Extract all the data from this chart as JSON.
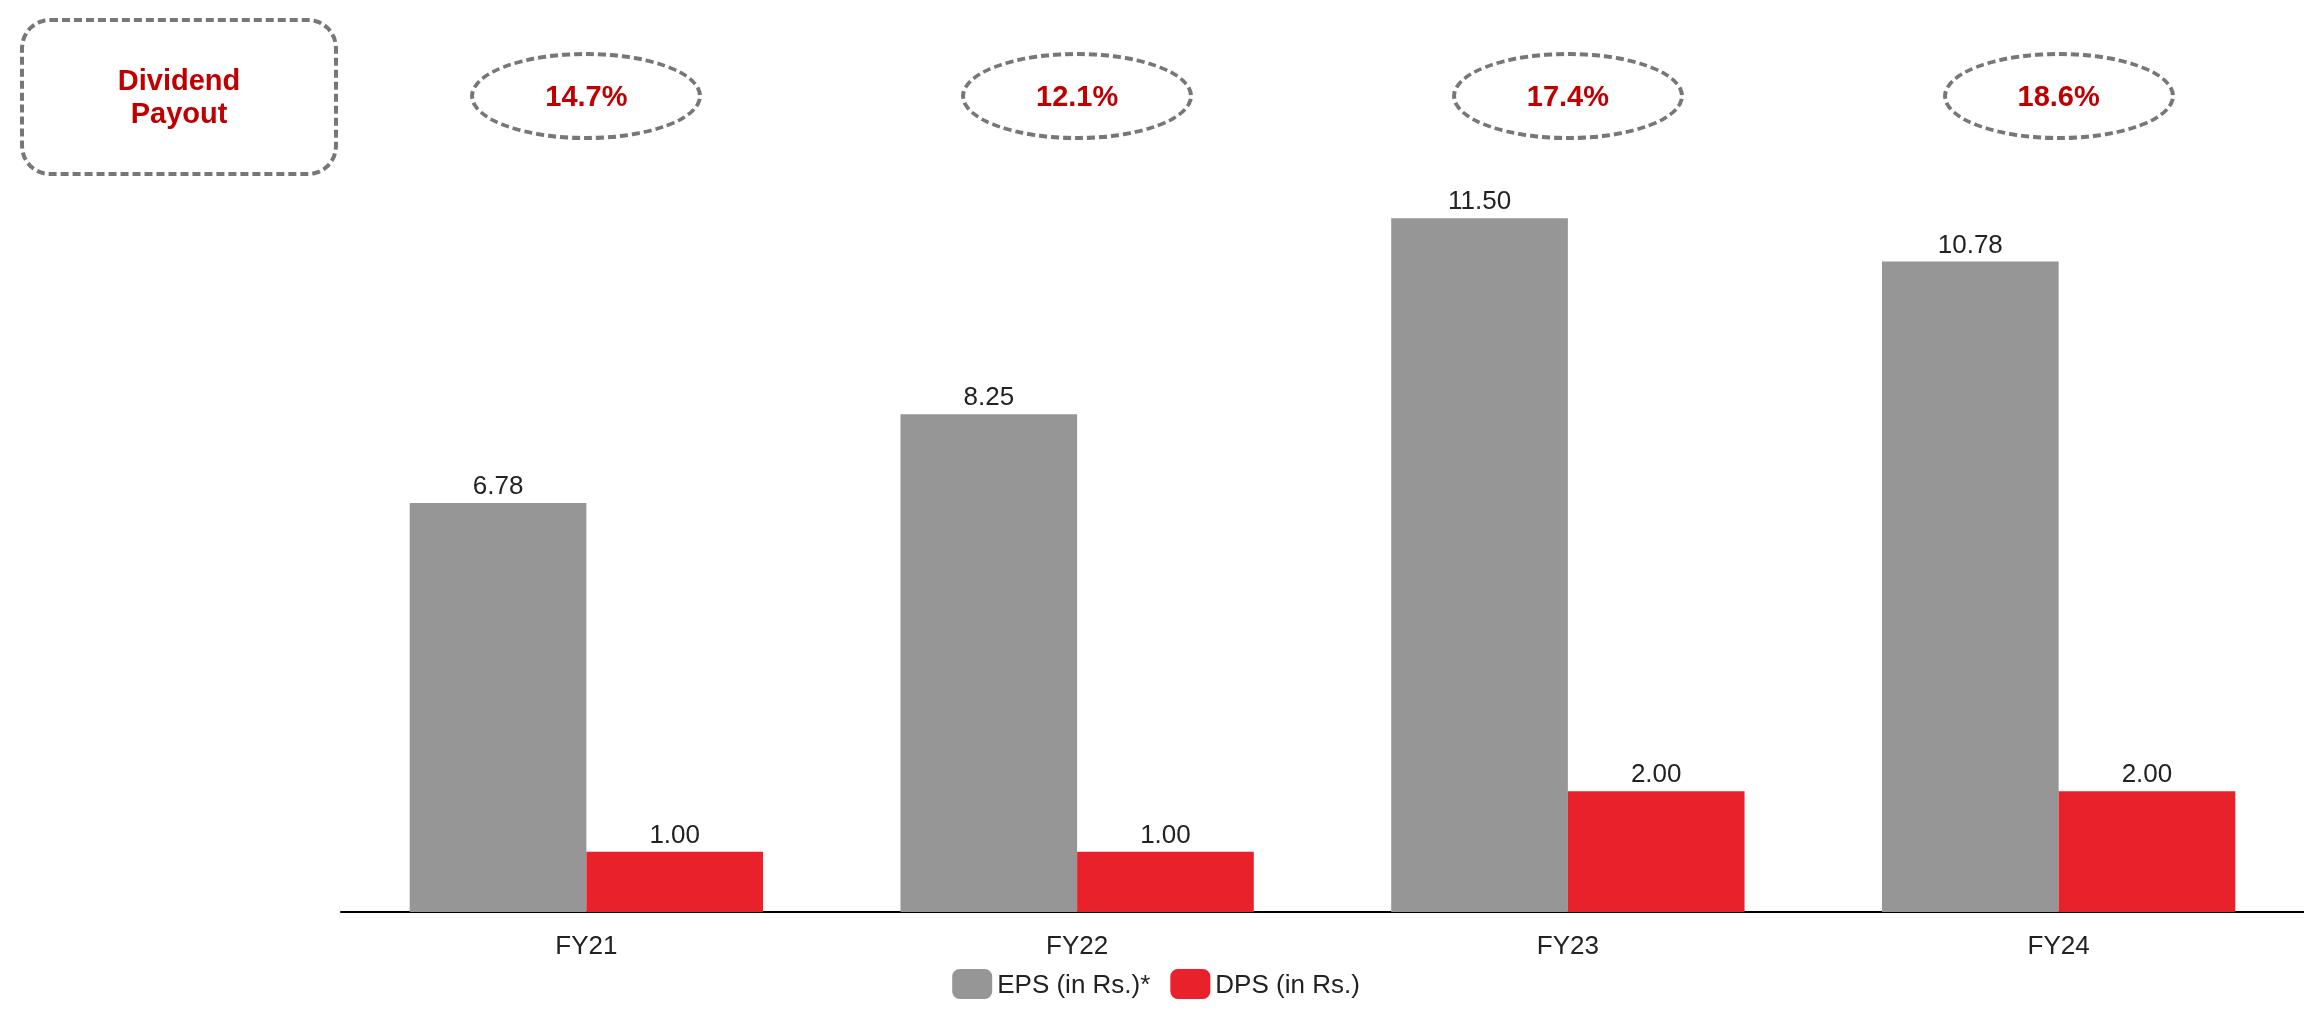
{
  "chart_data": {
    "type": "bar",
    "categories": [
      "FY21",
      "FY22",
      "FY23",
      "FY24"
    ],
    "series": [
      {
        "name": "EPS (in Rs.)*",
        "color": "#969696",
        "values": [
          6.78,
          8.25,
          11.5,
          10.78
        ],
        "value_labels": [
          "6.78",
          "8.25",
          "11.50",
          "10.78"
        ]
      },
      {
        "name": "DPS (in Rs.)",
        "color": "#e8212a",
        "values": [
          1.0,
          1.0,
          2.0,
          2.0
        ],
        "value_labels": [
          "1.00",
          "1.00",
          "2.00",
          "2.00"
        ]
      }
    ],
    "legend": "bottom",
    "annotations": [
      "Dividend Payout",
      "14.7%",
      "12.1%",
      "17.4%",
      "18.6%"
    ]
  }
}
